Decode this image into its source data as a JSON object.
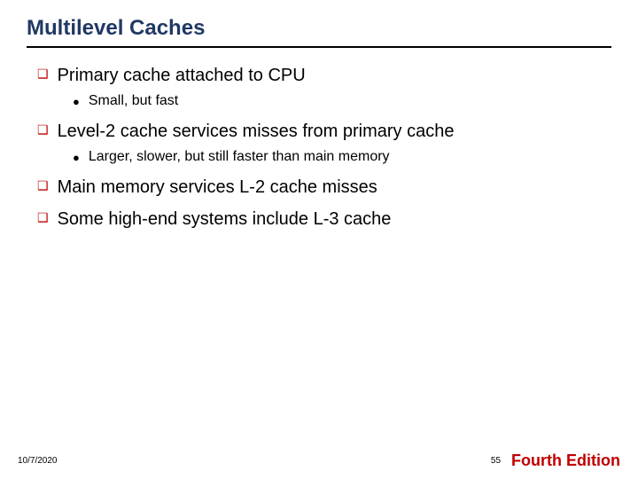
{
  "title": "Multilevel Caches",
  "colors": {
    "title_color": "#203864",
    "rule_color": "#000000",
    "level1_bullet_color": "#c00000",
    "level2_bullet_color": "#000000",
    "body_text_color": "#000000",
    "footer_accent_color": "#c00000",
    "background": "#ffffff"
  },
  "typography": {
    "title_fontsize": 24,
    "level1_fontsize": 20,
    "level2_fontsize": 16,
    "footer_date_fontsize": 10,
    "footer_page_fontsize": 10,
    "footer_edition_fontsize": 18,
    "font_family": "Arial"
  },
  "bullets": {
    "level1_glyph": "❑",
    "level2_glyph": "●"
  },
  "items": [
    {
      "text": "Primary cache attached to CPU",
      "sub": [
        "Small, but fast"
      ]
    },
    {
      "text": "Level-2 cache services misses from primary cache",
      "sub": [
        "Larger, slower, but still faster than main memory"
      ]
    },
    {
      "text": "Main memory services L-2 cache misses",
      "sub": []
    },
    {
      "text": "Some high-end systems include L-3 cache",
      "sub": []
    }
  ],
  "footer": {
    "date": "10/7/2020",
    "page": "55",
    "edition": "Fourth Edition"
  }
}
